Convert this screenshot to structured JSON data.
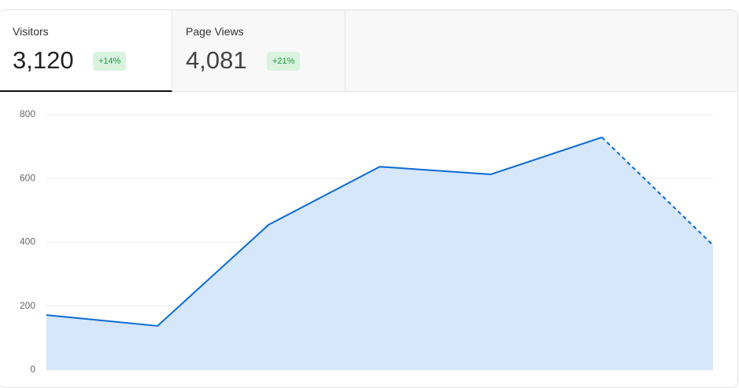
{
  "tabs": [
    {
      "label": "Visitors",
      "value": "3,120",
      "change": "+14%"
    },
    {
      "label": "Page Views",
      "value": "4,081",
      "change": "+21%"
    }
  ],
  "chart_data": {
    "type": "area",
    "categories": [
      null,
      null,
      null,
      null,
      null,
      null,
      null
    ],
    "series": [
      {
        "name": "Visitors",
        "color": "#0a6ad8",
        "values": [
          172,
          138,
          455,
          637,
          613,
          729,
          391
        ]
      }
    ],
    "fill_color": "#d6e6fb",
    "last_segment_dashed": true,
    "ylim": [
      0,
      800
    ],
    "yticks": [
      0,
      200,
      400,
      600,
      800
    ],
    "grid": true
  }
}
